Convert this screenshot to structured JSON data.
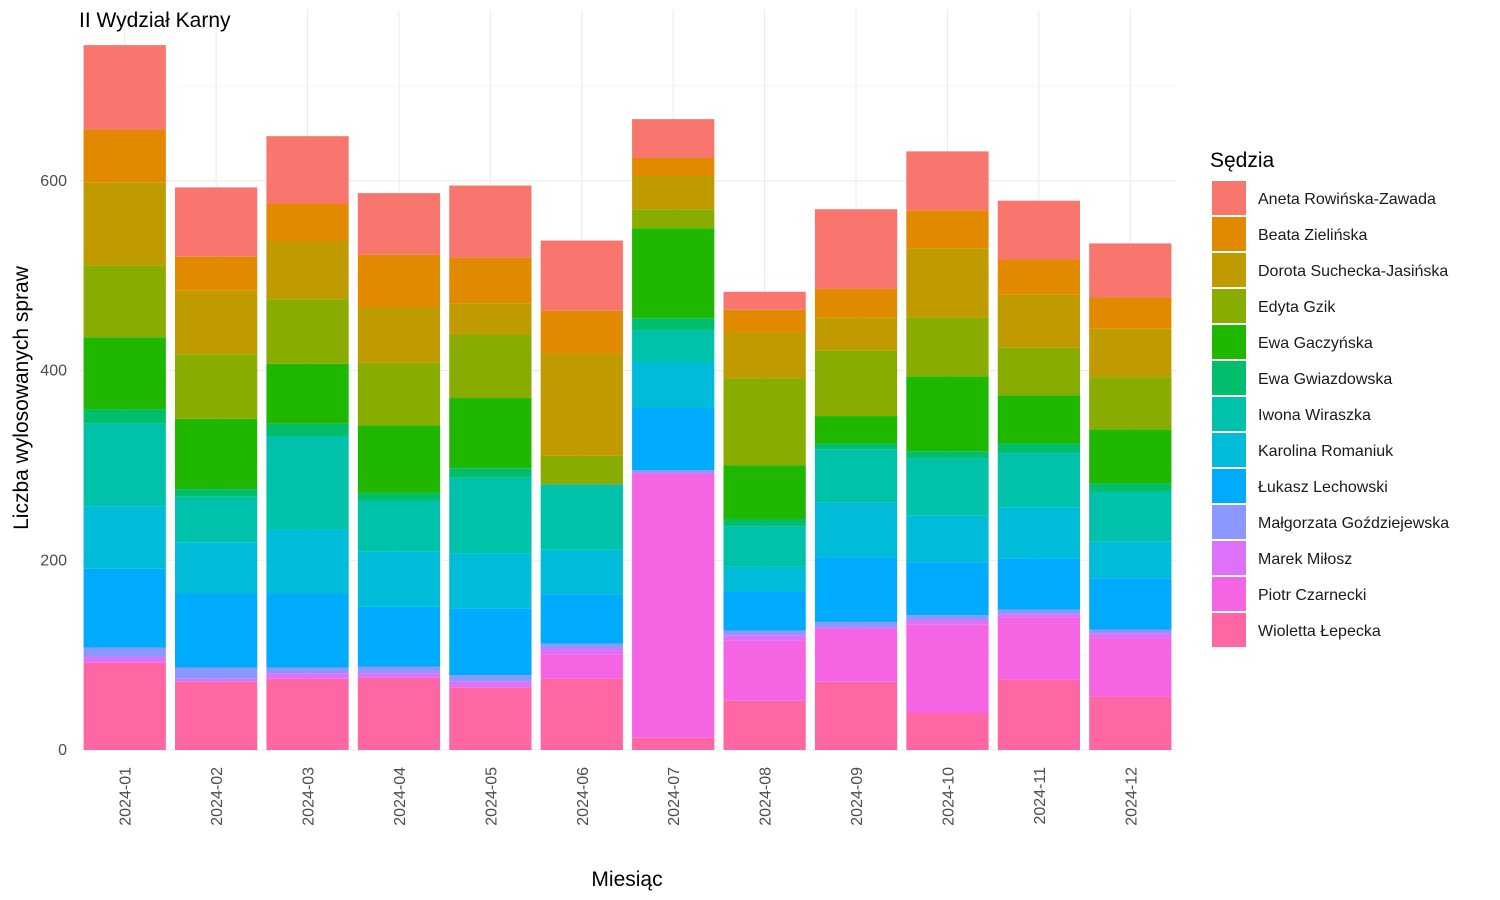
{
  "chart_data": {
    "type": "bar",
    "stacked": true,
    "title": "II Wydział Karny",
    "xlabel": "Miesiąc",
    "ylabel": "Liczba wylosowanych spraw",
    "ylim": [
      0,
      780
    ],
    "yticks": [
      0,
      200,
      400,
      600
    ],
    "grid": true,
    "legend_title": "Sędzia",
    "legend_position": "right",
    "categories": [
      "2024-01",
      "2024-02",
      "2024-03",
      "2024-04",
      "2024-05",
      "2024-06",
      "2024-07",
      "2024-08",
      "2024-09",
      "2024-10",
      "2024-11",
      "2024-12"
    ],
    "series": [
      {
        "name": "Wioletta Łepecka",
        "color": "#FF67A4",
        "values": [
          92,
          72,
          75,
          76,
          66,
          75,
          13,
          52,
          72,
          39,
          74,
          56
        ]
      },
      {
        "name": "Piotr Czarnecki",
        "color": "#F564E3",
        "values": [
          0,
          0,
          0,
          0,
          0,
          26,
          278,
          63,
          55,
          93,
          66,
          62
        ]
      },
      {
        "name": "Marek Miłosz",
        "color": "#DE71F9",
        "values": [
          6,
          3,
          6,
          5,
          6,
          6,
          1,
          6,
          2,
          5,
          3,
          5
        ]
      },
      {
        "name": "Małgorzata Goździejewska",
        "color": "#8C97FF",
        "values": [
          10,
          12,
          6,
          7,
          7,
          5,
          3,
          5,
          6,
          5,
          5,
          4
        ]
      },
      {
        "name": "Łukasz Lechowski",
        "color": "#00ABFD",
        "values": [
          83,
          78,
          78,
          63,
          70,
          52,
          66,
          41,
          68,
          56,
          54,
          54
        ]
      },
      {
        "name": "Karolina Romaniuk",
        "color": "#00BCD8",
        "values": [
          66,
          54,
          67,
          58,
          58,
          47,
          48,
          26,
          58,
          49,
          54,
          39
        ]
      },
      {
        "name": "Iwona Wiraszka",
        "color": "#00C1AA",
        "values": [
          87,
          48,
          99,
          54,
          80,
          69,
          33,
          43,
          56,
          60,
          57,
          52
        ]
      },
      {
        "name": "Ewa Gwiazdowska",
        "color": "#00BE6C",
        "values": [
          15,
          8,
          13,
          8,
          10,
          0,
          13,
          7,
          6,
          8,
          10,
          9
        ]
      },
      {
        "name": "Ewa Gaczyńska",
        "color": "#1FB700",
        "values": [
          76,
          74,
          63,
          71,
          74,
          0,
          95,
          57,
          29,
          79,
          51,
          57
        ]
      },
      {
        "name": "Edyta Gzik",
        "color": "#88AC00",
        "values": [
          76,
          68,
          68,
          66,
          67,
          30,
          20,
          92,
          69,
          62,
          50,
          55
        ]
      },
      {
        "name": "Dorota Suchecka-Jasińska",
        "color": "#C09B00",
        "values": [
          87,
          67,
          61,
          59,
          33,
          108,
          35,
          48,
          35,
          73,
          56,
          51
        ]
      },
      {
        "name": "Beata Zielińska",
        "color": "#E18A00",
        "values": [
          56,
          36,
          40,
          55,
          48,
          45,
          19,
          24,
          30,
          40,
          37,
          33
        ]
      },
      {
        "name": "Aneta Rowińska-Zawada",
        "color": "#F8766D",
        "values": [
          89,
          73,
          71,
          65,
          76,
          74,
          41,
          19,
          84,
          62,
          62,
          57
        ]
      }
    ],
    "legend_order": [
      "Aneta Rowińska-Zawada",
      "Beata Zielińska",
      "Dorota Suchecka-Jasińska",
      "Edyta Gzik",
      "Ewa Gaczyńska",
      "Ewa Gwiazdowska",
      "Iwona Wiraszka",
      "Karolina Romaniuk",
      "Łukasz Lechowski",
      "Małgorzata Goździejewska",
      "Marek Miłosz",
      "Piotr Czarnecki",
      "Wioletta Łepecka"
    ]
  }
}
